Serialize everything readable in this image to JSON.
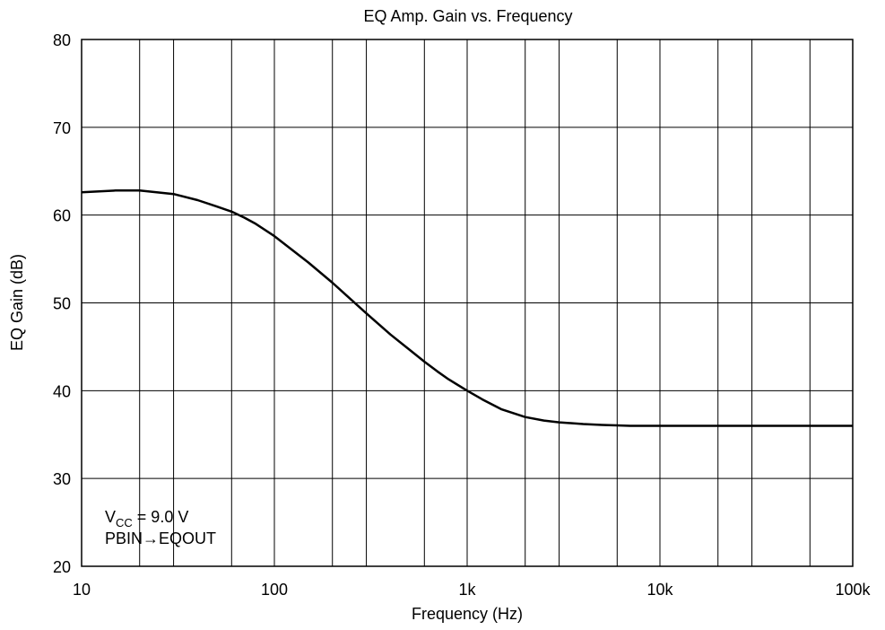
{
  "chart_data": {
    "type": "line",
    "title": "EQ Amp. Gain vs. Frequency",
    "xlabel": "Frequency  (Hz)",
    "ylabel": "EQ Gain  (dB)",
    "xscale": "log",
    "xlim": [
      10,
      100000
    ],
    "ylim": [
      20,
      80
    ],
    "x_ticks": [
      10,
      100,
      1000,
      10000,
      100000
    ],
    "x_tick_labels": [
      "10",
      "100",
      "1k",
      "10k",
      "100k"
    ],
    "y_ticks": [
      20,
      30,
      40,
      50,
      60,
      70,
      80
    ],
    "y_tick_labels": [
      "20",
      "30",
      "40",
      "50",
      "60",
      "70",
      "80"
    ],
    "grid": true,
    "annotation": {
      "vcc_main": "V",
      "vcc_sub": "CC",
      "vcc_rest": " = 9.0 V",
      "line2": "PBIN→EQOUT"
    },
    "series": [
      {
        "x": [
          10,
          15,
          20,
          30,
          40,
          50,
          60,
          70,
          80,
          100,
          150,
          200,
          300,
          400,
          500,
          600,
          700,
          800,
          1000,
          1200,
          1500,
          2000,
          2500,
          3000,
          4000,
          5000,
          6000,
          7000,
          8000,
          10000,
          20000,
          50000,
          100000
        ],
        "y": [
          62.6,
          62.8,
          62.8,
          62.4,
          61.7,
          61.0,
          60.4,
          59.7,
          59.0,
          57.6,
          54.6,
          52.3,
          48.8,
          46.4,
          44.7,
          43.3,
          42.2,
          41.3,
          40.0,
          39.0,
          37.9,
          37.0,
          36.6,
          36.4,
          36.2,
          36.1,
          36.05,
          36.0,
          36.0,
          36.0,
          36.0,
          36.0,
          36.0
        ]
      }
    ]
  }
}
